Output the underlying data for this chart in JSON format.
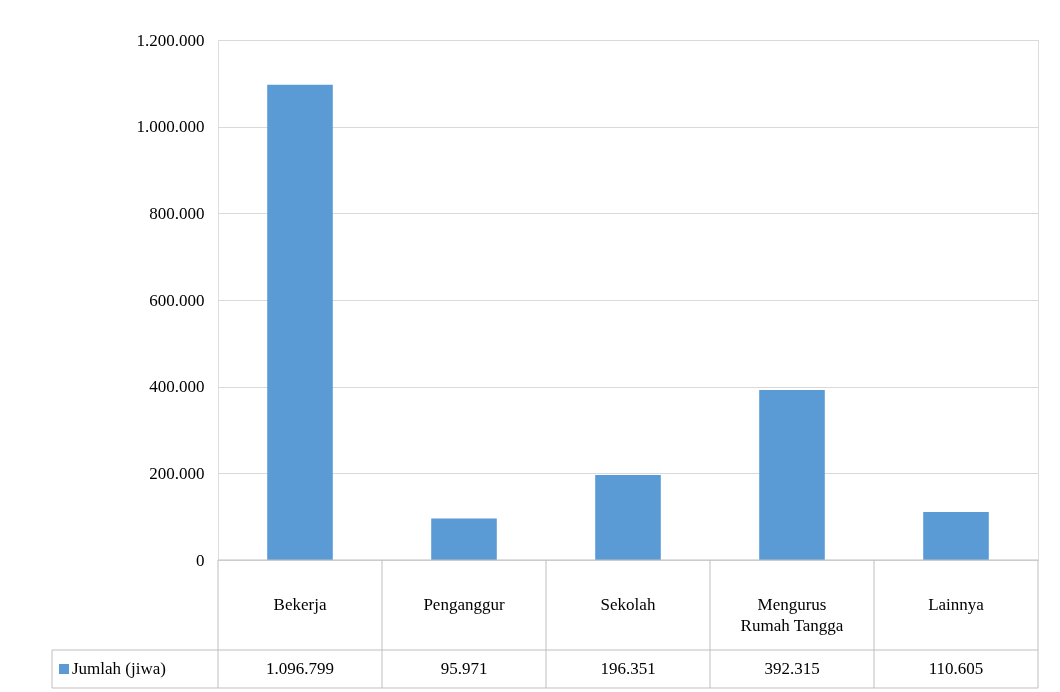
{
  "chart_data": {
    "type": "bar",
    "categories": [
      "Bekerja",
      "Penganggur",
      "Sekolah",
      "Mengurus Rumah Tangga",
      "Lainnya"
    ],
    "series": [
      {
        "name": "Jumlah (jiwa)",
        "color": "#5b9bd5",
        "values": [
          1096799,
          95971,
          196351,
          392315,
          110605
        ],
        "value_labels": [
          "1.096.799",
          "95.971",
          "196.351",
          "392.315",
          "110.605"
        ]
      }
    ],
    "ylim": [
      0,
      1200000
    ],
    "yticks": [
      {
        "value": 0,
        "label": "0"
      },
      {
        "value": 200000,
        "label": "200.000"
      },
      {
        "value": 400000,
        "label": "400.000"
      },
      {
        "value": 600000,
        "label": "600.000"
      },
      {
        "value": 800000,
        "label": "800.000"
      },
      {
        "value": 1000000,
        "label": "1.000.000"
      },
      {
        "value": 1200000,
        "label": "1.200.000"
      }
    ],
    "grid": "y",
    "legend": "bottom"
  }
}
